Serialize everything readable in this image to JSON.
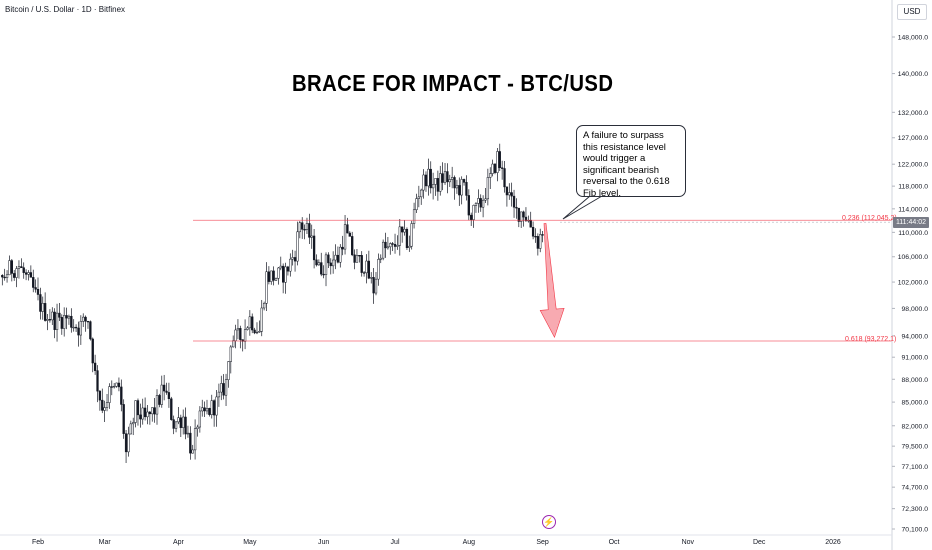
{
  "header": {
    "symbol_title": "Bitcoin / U.S. Dollar · 1D · Bitfinex",
    "currency_button": "USD"
  },
  "annotations": {
    "headline": "BRACE FOR IMPACT - BTC/USD",
    "callout_text": "A failure to surpass this resistance level would trigger a significant bearish reversal to the 0.618 Fib level.",
    "flash_icon": "lightning-icon"
  },
  "colors": {
    "up_candle": "#131722",
    "down_candle": "#131722",
    "fib_line": "#f23645",
    "arrow_fill": "#f7a1a9",
    "arrow_stroke": "#f23645",
    "current_price_tag": "#787b86"
  },
  "chart_data": {
    "type": "candlestick",
    "title": "BRACE FOR IMPACT - BTC/USD",
    "y_scale": "log",
    "ylim": [
      70100,
      155000
    ],
    "y_ticks": [
      "148,000.0",
      "140,000.0",
      "132,000.0",
      "127,000.0",
      "122,000.0",
      "118,000.0",
      "114,000.0",
      "110,000.0",
      "106,000.0",
      "102,000.0",
      "98,000.0",
      "94,000.0",
      "91,000.0",
      "88,000.0",
      "85,000.0",
      "82,000.0",
      "79,500.0",
      "77,100.0",
      "74,700.0",
      "72,300.0",
      "70,100.0"
    ],
    "x_ticks": [
      "Feb",
      "Mar",
      "Apr",
      "May",
      "Jun",
      "Jul",
      "Aug",
      "Sep",
      "Oct",
      "Nov",
      "Dec",
      "2026"
    ],
    "current_price_label": "111:44:02",
    "fib_levels": [
      {
        "label": "0.236 (112,045.2)",
        "value": 112045.2
      },
      {
        "label": "0.618 (93,272.1)",
        "value": 93272.1
      }
    ],
    "projection_arrow": {
      "from_date": "2025-09-02",
      "from_value": 111500,
      "to_date": "2025-09-06",
      "to_value": 93800
    },
    "series_closes": [
      [
        "2025-01-01",
        96000
      ],
      [
        "2025-01-06",
        101000
      ],
      [
        "2025-01-10",
        98500
      ],
      [
        "2025-01-15",
        101500
      ],
      [
        "2025-01-20",
        104000
      ],
      [
        "2025-01-24",
        104500
      ],
      [
        "2025-01-29",
        101500
      ],
      [
        "2025-02-03",
        97700
      ],
      [
        "2025-02-08",
        96300
      ],
      [
        "2025-02-13",
        96600
      ],
      [
        "2025-02-18",
        95200
      ],
      [
        "2025-02-22",
        96500
      ],
      [
        "2025-02-25",
        88600
      ],
      [
        "2025-02-28",
        84300
      ],
      [
        "2025-03-03",
        86200
      ],
      [
        "2025-03-07",
        87000
      ],
      [
        "2025-03-10",
        78600
      ],
      [
        "2025-03-14",
        84000
      ],
      [
        "2025-03-18",
        82700
      ],
      [
        "2025-03-22",
        84000
      ],
      [
        "2025-03-26",
        86900
      ],
      [
        "2025-03-30",
        82300
      ],
      [
        "2025-04-03",
        83100
      ],
      [
        "2025-04-07",
        78400
      ],
      [
        "2025-04-09",
        82500
      ],
      [
        "2025-04-13",
        83700
      ],
      [
        "2025-04-17",
        84900
      ],
      [
        "2025-04-21",
        87500
      ],
      [
        "2025-04-23",
        93500
      ],
      [
        "2025-04-27",
        93800
      ],
      [
        "2025-05-01",
        96500
      ],
      [
        "2025-05-05",
        94700
      ],
      [
        "2025-05-08",
        103000
      ],
      [
        "2025-05-12",
        102800
      ],
      [
        "2025-05-16",
        103500
      ],
      [
        "2025-05-20",
        106800
      ],
      [
        "2025-05-22",
        111700
      ],
      [
        "2025-05-26",
        109400
      ],
      [
        "2025-05-30",
        104000
      ],
      [
        "2025-06-03",
        105400
      ],
      [
        "2025-06-07",
        105700
      ],
      [
        "2025-06-10",
        110300
      ],
      [
        "2025-06-14",
        105500
      ],
      [
        "2025-06-18",
        104800
      ],
      [
        "2025-06-22",
        100900
      ],
      [
        "2025-06-25",
        107300
      ],
      [
        "2025-06-30",
        107100
      ],
      [
        "2025-07-03",
        109600
      ],
      [
        "2025-07-07",
        108200
      ],
      [
        "2025-07-10",
        116000
      ],
      [
        "2025-07-14",
        119800
      ],
      [
        "2025-07-18",
        117900
      ],
      [
        "2025-07-22",
        119900
      ],
      [
        "2025-07-26",
        117600
      ],
      [
        "2025-07-30",
        117800
      ],
      [
        "2025-08-02",
        112600
      ],
      [
        "2025-08-06",
        114900
      ],
      [
        "2025-08-10",
        119300
      ],
      [
        "2025-08-13",
        123300
      ],
      [
        "2025-08-17",
        117400
      ],
      [
        "2025-08-20",
        113500
      ],
      [
        "2025-08-24",
        113500
      ],
      [
        "2025-08-27",
        111200
      ],
      [
        "2025-08-30",
        108400
      ],
      [
        "2025-09-02",
        111200
      ]
    ]
  }
}
